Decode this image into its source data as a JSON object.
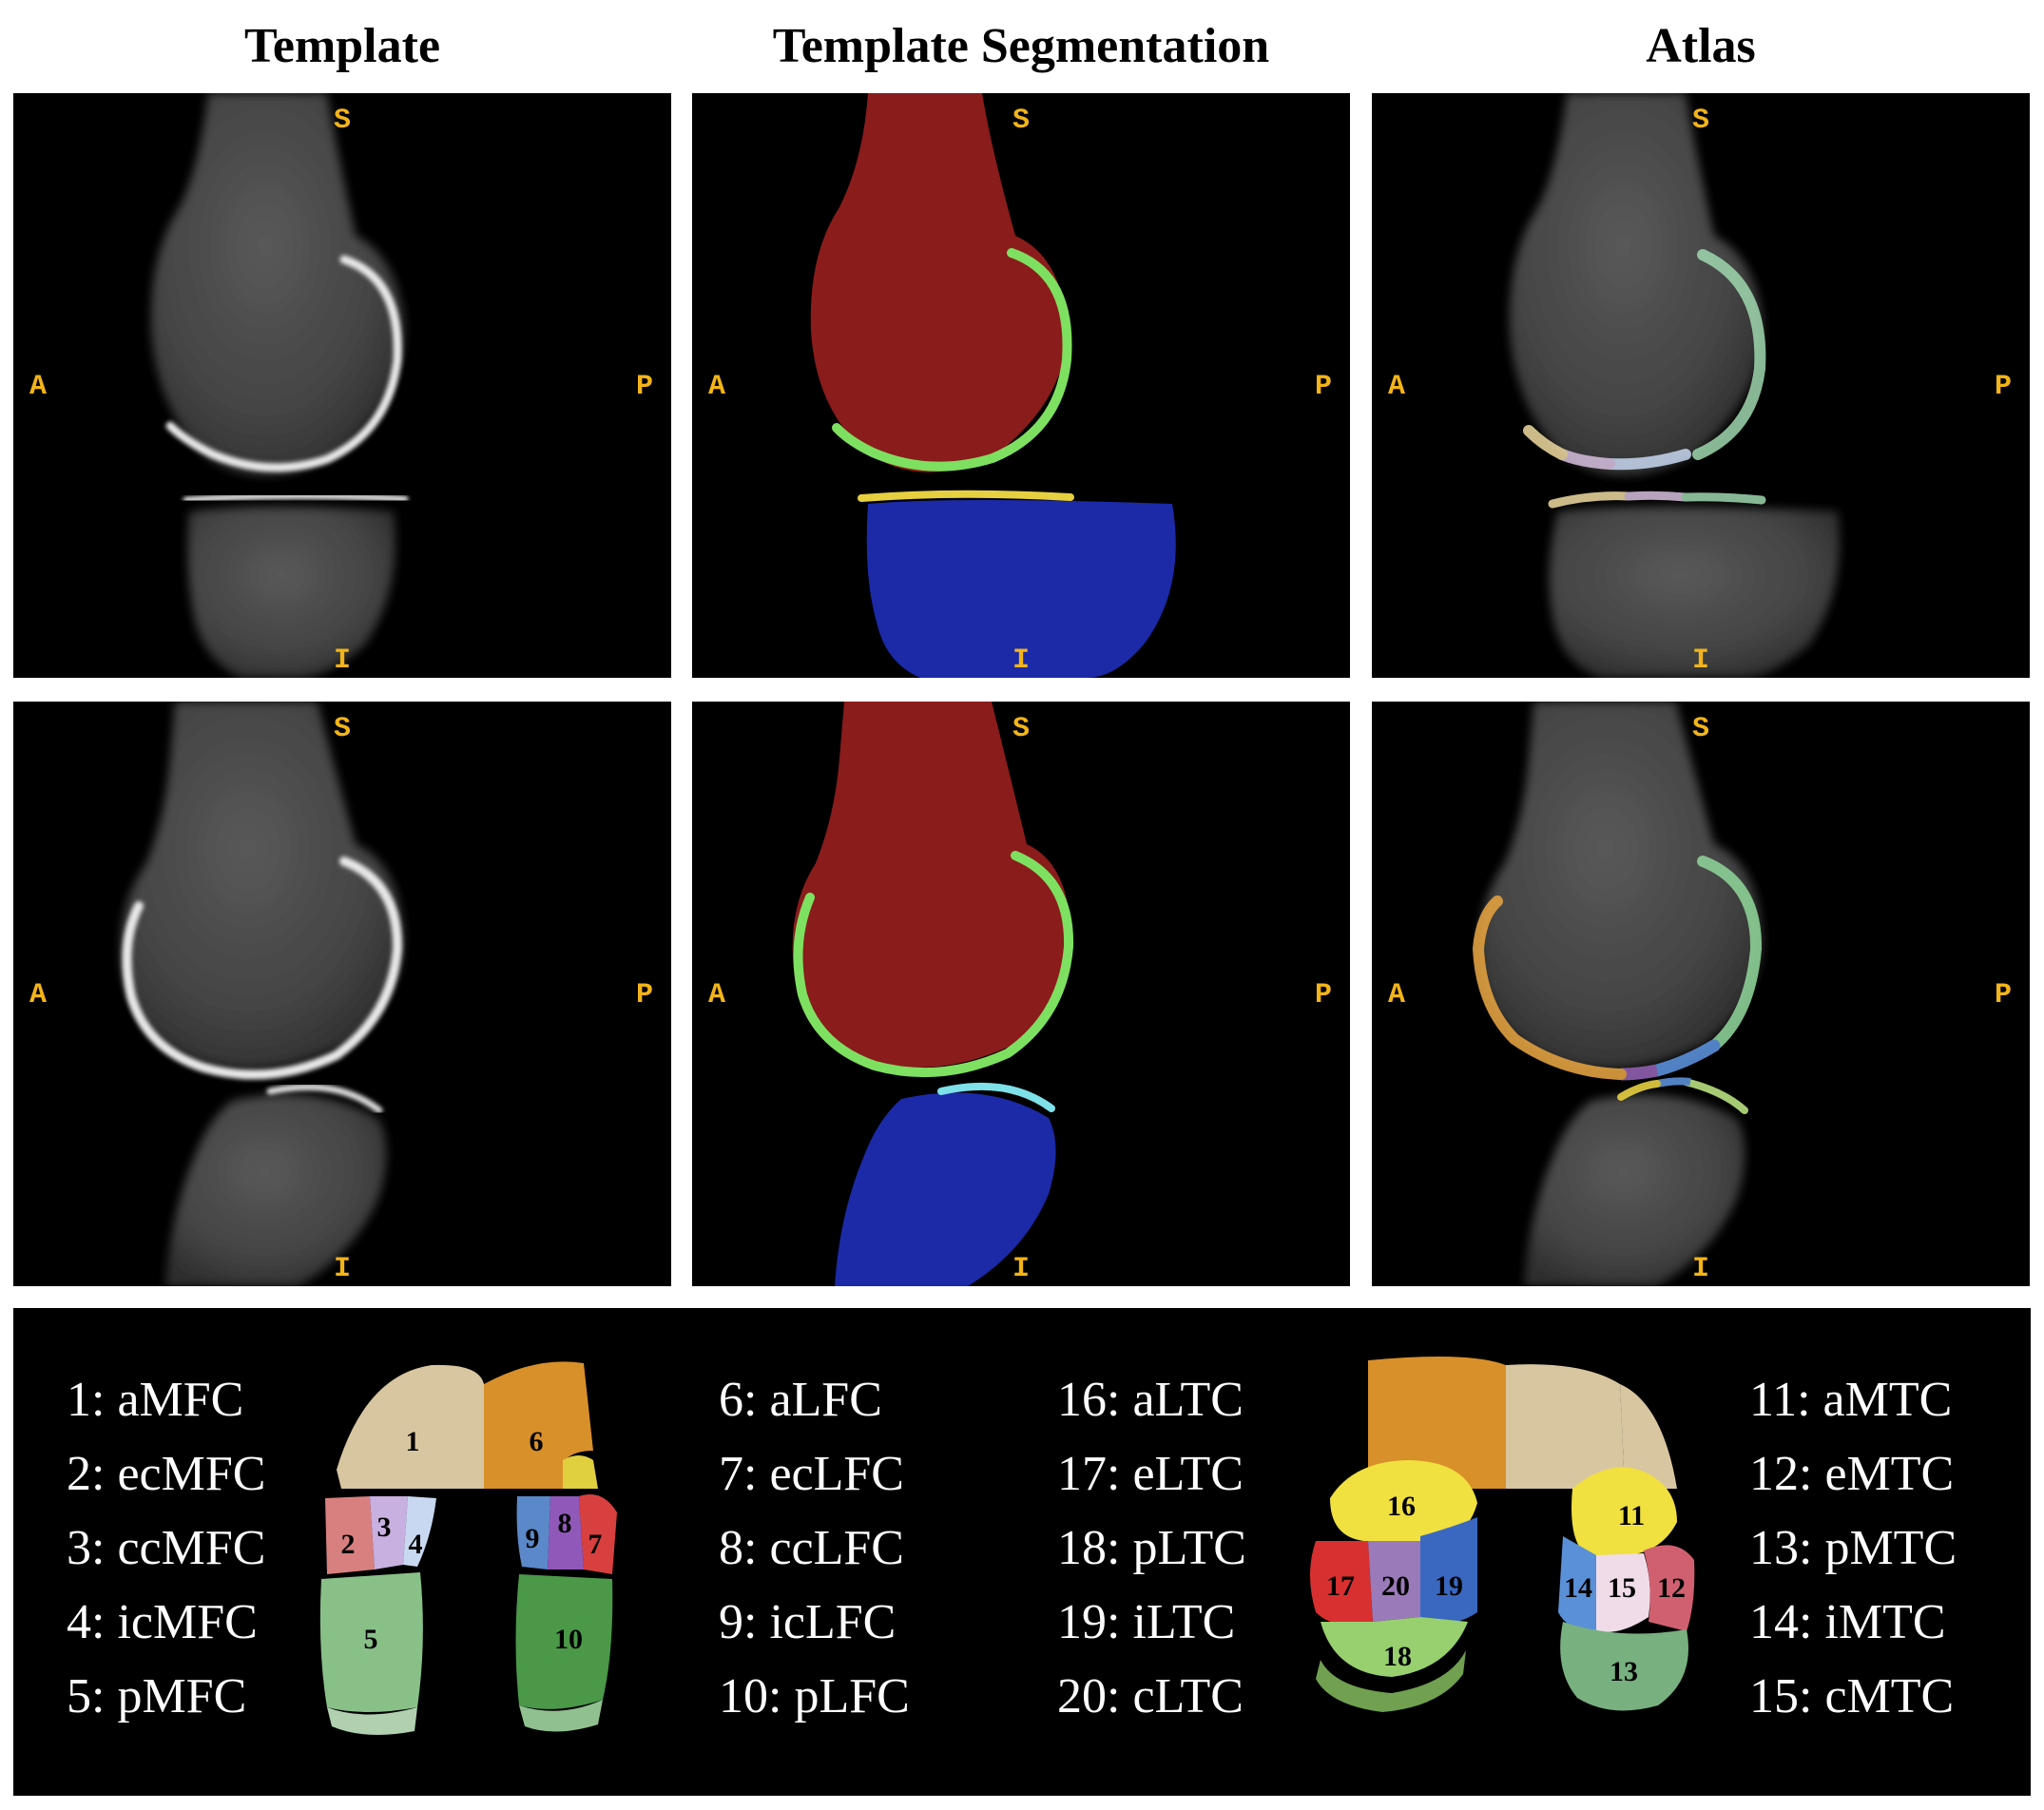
{
  "columns": [
    "Template",
    "Template Segmentation",
    "Atlas"
  ],
  "orientation": {
    "superior": "S",
    "inferior": "I",
    "anterior": "A",
    "posterior": "P"
  },
  "colors": {
    "orientation_label": "#f2b418",
    "femur_seg": "#8a1c1c",
    "tibia_seg": "#1c2aa8",
    "femoral_cartilage_seg": "#7ee060",
    "tibial_cartilage_seg": "#e6d040",
    "tibial_cartilage_seg_medial": "#7ee0e8"
  },
  "legend_groups": [
    [
      "1: aMFC",
      "2: ecMFC",
      "3: ccMFC",
      "4: icMFC",
      "5: pMFC"
    ],
    [
      "6: aLFC",
      "7: ecLFC",
      "8: ccLFC",
      "9: icLFC",
      "10: pLFC"
    ],
    [
      "16: aLTC",
      "17: eLTC",
      "18: pLTC",
      "19: iLTC",
      "20: cLTC"
    ],
    [
      "11: aMTC",
      "12: eMTC",
      "13: pMTC",
      "14: iMTC",
      "15: cMTC"
    ]
  ],
  "femur_region_labels": [
    "1",
    "2",
    "3",
    "4",
    "5",
    "6",
    "7",
    "8",
    "9",
    "10"
  ],
  "tibia_region_labels": [
    "11",
    "12",
    "13",
    "14",
    "15",
    "16",
    "17",
    "18",
    "19",
    "20"
  ]
}
